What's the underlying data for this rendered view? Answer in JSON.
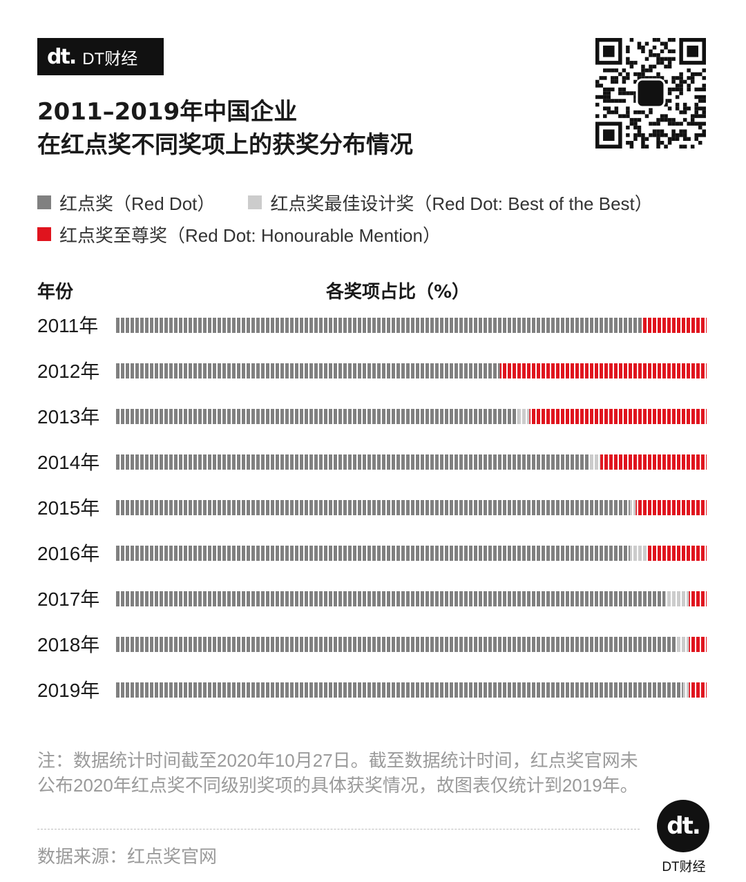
{
  "brand": {
    "logo_text": "dt.",
    "name": "DT财经"
  },
  "title_lines": [
    "2011–2019年中国企业",
    "在红点奖不同奖项上的获奖分布情况"
  ],
  "legend": [
    {
      "label": "红点奖（Red Dot）",
      "color": "#808080"
    },
    {
      "label": "红点奖最佳设计奖（Red Dot: Best of the Best）",
      "color": "#cccccc"
    },
    {
      "label": "红点奖至尊奖（Red Dot: Honourable Mention）",
      "color": "#e0141e"
    }
  ],
  "column_headers": {
    "year": "年份",
    "share": "各奖项占比（%）"
  },
  "chart_data": {
    "type": "bar",
    "stacked": true,
    "orientation": "horizontal",
    "categories": [
      "2011年",
      "2012年",
      "2013年",
      "2014年",
      "2015年",
      "2016年",
      "2017年",
      "2018年",
      "2019年"
    ],
    "series": [
      {
        "name": "红点奖（Red Dot）",
        "color": "#808080",
        "values": [
          89,
          65,
          68,
          80,
          87,
          87,
          93,
          95,
          96
        ]
      },
      {
        "name": "红点奖最佳设计奖（Red Dot: Best of the Best）",
        "color": "#cccccc",
        "values": [
          0,
          0,
          2,
          2,
          1,
          3,
          4,
          2,
          1
        ]
      },
      {
        "name": "红点奖至尊奖（Red Dot: Honourable Mention）",
        "color": "#e0141e",
        "values": [
          11,
          35,
          30,
          18,
          12,
          10,
          3,
          3,
          3
        ]
      }
    ],
    "xlim": [
      0,
      100
    ],
    "xlabel": "各奖项占比（%）",
    "ylabel": "年份"
  },
  "note": "注：数据统计时间截至2020年10月27日。截至数据统计时间，红点奖官网未公布2020年红点奖不同级别奖项的具体获奖情况，故图表仅统计到2019年。",
  "source": "数据来源：红点奖官网",
  "footer_brand": "DT财经"
}
